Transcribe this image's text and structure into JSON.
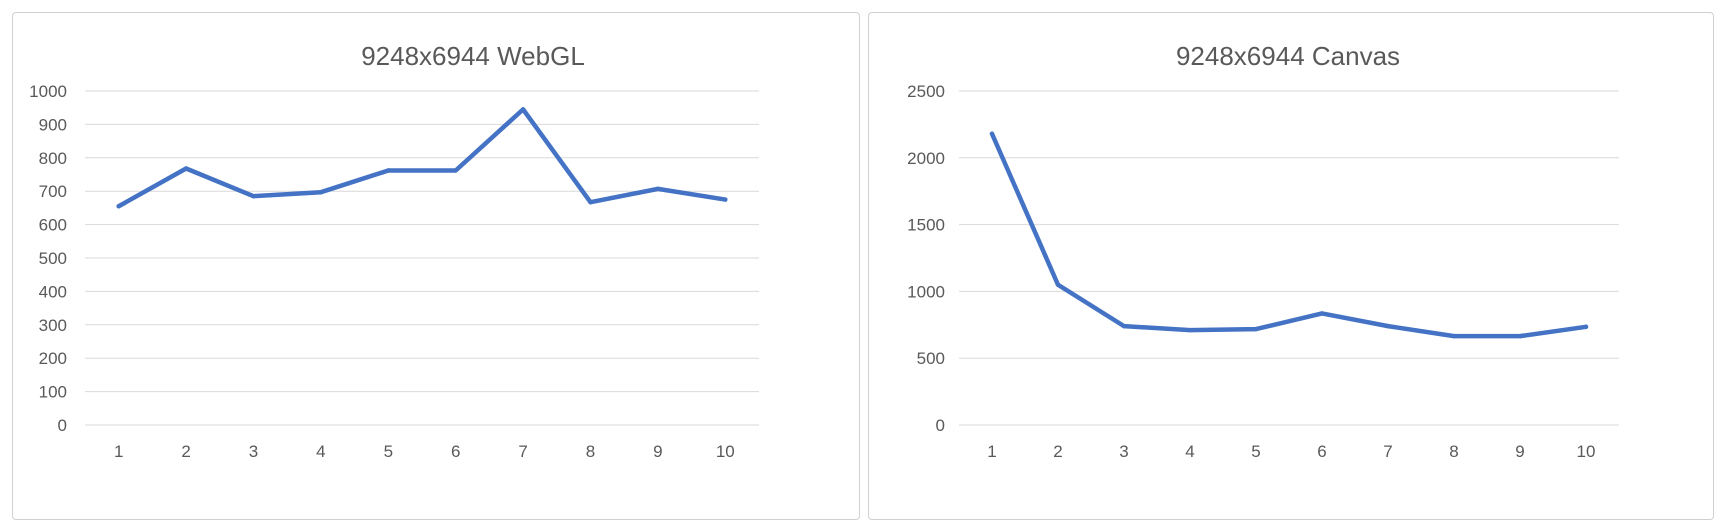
{
  "colors": {
    "series": "#4472c4",
    "grid": "#d9d9d9",
    "text": "#595959"
  },
  "chart_data": [
    {
      "type": "line",
      "title": "9248x6944 WebGL",
      "xlabel": "",
      "ylabel": "",
      "categories": [
        "1",
        "2",
        "3",
        "4",
        "5",
        "6",
        "7",
        "8",
        "9",
        "10"
      ],
      "yticks": [
        "0",
        "100",
        "200",
        "300",
        "400",
        "500",
        "600",
        "700",
        "800",
        "900",
        "1000"
      ],
      "ylim": [
        0,
        1000
      ],
      "grid": true,
      "series": [
        {
          "name": "WebGL",
          "values": [
            655,
            768,
            685,
            697,
            762,
            762,
            945,
            667,
            707,
            675
          ]
        }
      ]
    },
    {
      "type": "line",
      "title": "9248x6944 Canvas",
      "xlabel": "",
      "ylabel": "",
      "categories": [
        "1",
        "2",
        "3",
        "4",
        "5",
        "6",
        "7",
        "8",
        "9",
        "10"
      ],
      "yticks": [
        "0",
        "500",
        "1000",
        "1500",
        "2000",
        "2500"
      ],
      "ylim": [
        0,
        2500
      ],
      "grid": true,
      "series": [
        {
          "name": "Canvas",
          "values": [
            2180,
            1050,
            740,
            710,
            718,
            835,
            740,
            665,
            665,
            735
          ]
        }
      ]
    }
  ]
}
